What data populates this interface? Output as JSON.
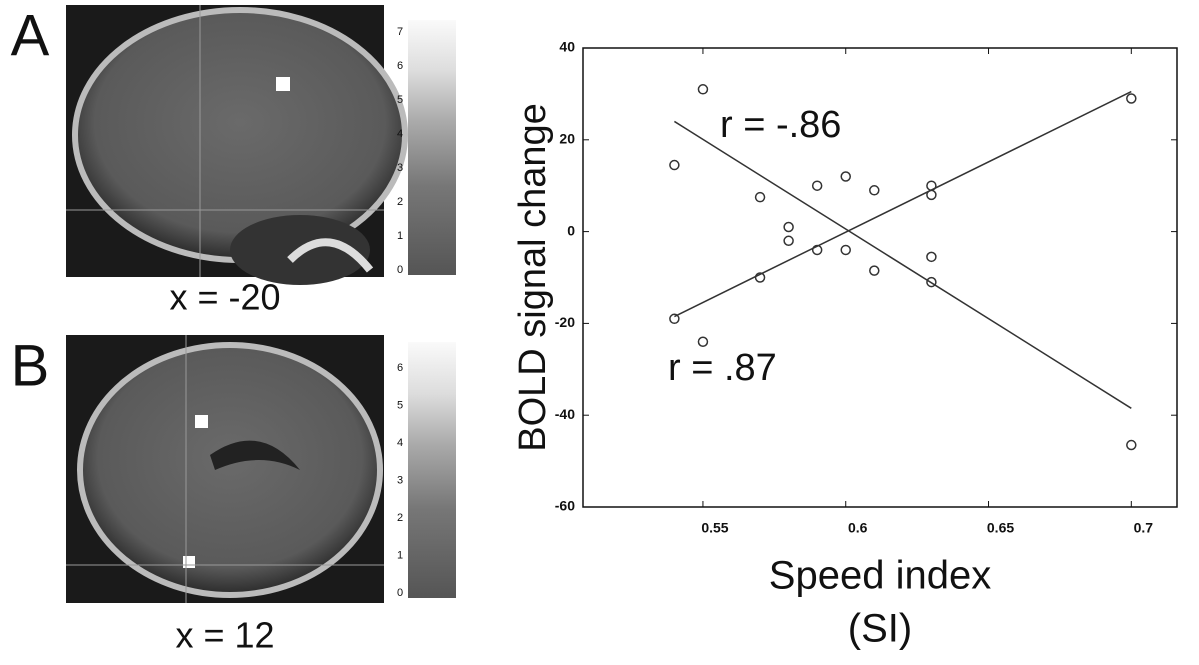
{
  "panels": [
    {
      "label": "A",
      "caption": "x = -20",
      "colorbar_ticks": [
        0,
        1,
        2,
        3,
        4,
        5,
        6,
        7
      ]
    },
    {
      "label": "B",
      "caption": "x = 12",
      "colorbar_ticks": [
        0,
        1,
        2,
        3,
        4,
        5,
        6
      ]
    }
  ],
  "chart_data": {
    "type": "scatter",
    "ylabel": "BOLD signal change",
    "xlabel": [
      "Speed index",
      "(SI)"
    ],
    "x": [
      0.54,
      0.54,
      0.55,
      0.55,
      0.57,
      0.57,
      0.58,
      0.58,
      0.59,
      0.59,
      0.6,
      0.6,
      0.61,
      0.61,
      0.63,
      0.63,
      0.63,
      0.63,
      0.7,
      0.7
    ],
    "y": [
      14.5,
      -19,
      31,
      -24,
      7.5,
      -10,
      1,
      -2,
      10,
      -4,
      12,
      -4,
      9,
      -8.5,
      10,
      8,
      -5.5,
      -11,
      29,
      -46.5
    ],
    "color": "#333333",
    "lines": [
      {
        "label": "r = -.86",
        "x": [
          0.54,
          0.7
        ],
        "y": [
          24,
          -38.5
        ]
      },
      {
        "label": "r = .87",
        "x": [
          0.54,
          0.7
        ],
        "y": [
          -18.5,
          30.5
        ]
      }
    ],
    "xlim": [
      0.508,
      0.716
    ],
    "ylim": [
      -60,
      40
    ],
    "xticks": [
      0.55,
      0.6,
      0.65,
      0.7
    ],
    "yticks": [
      40,
      20,
      0,
      -20,
      -40,
      -60
    ]
  }
}
